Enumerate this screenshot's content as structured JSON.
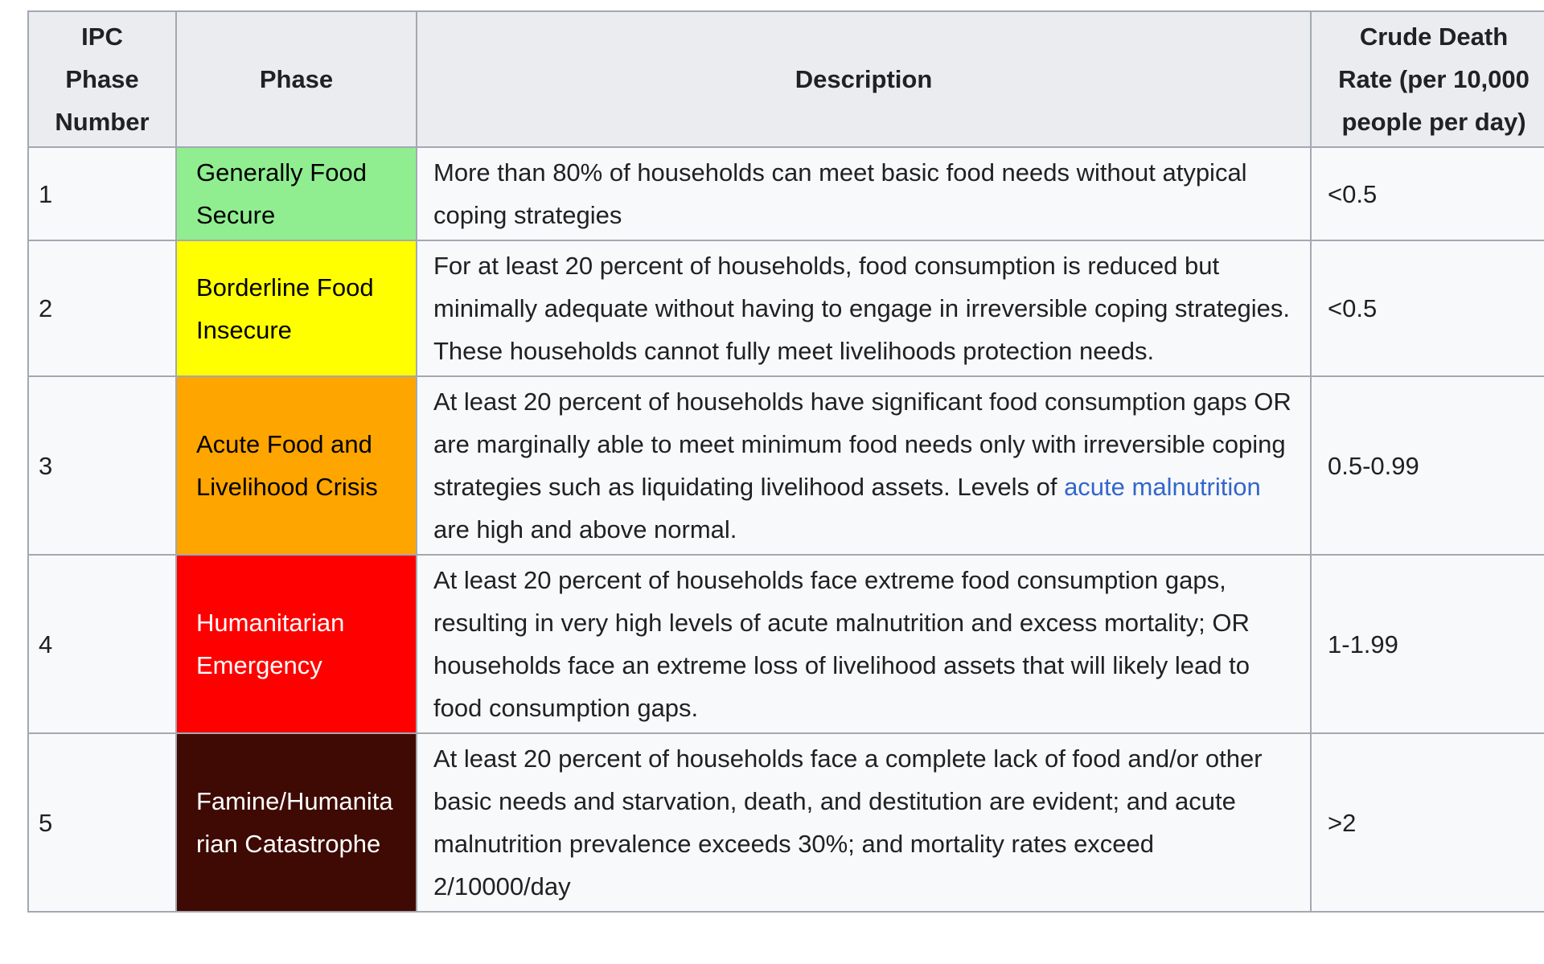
{
  "colors": {
    "page_bg": "#ffffff",
    "header_bg": "#eaecf0",
    "cell_bg": "#f8f9fa",
    "border": "#a2a9b1",
    "text": "#202122",
    "link": "#3366cc"
  },
  "table": {
    "headers": [
      {
        "label": "IPC Phase\nNumber"
      },
      {
        "label": "Phase"
      },
      {
        "label": "Description"
      },
      {
        "label": "Crude Death\nRate (per 10,000\npeople per day)"
      }
    ],
    "rows": [
      {
        "ipc_phase_number": "1",
        "phase": {
          "label": "Generally Food Secure",
          "bg": "#90ee90",
          "text_color": "#000000"
        },
        "description": [
          {
            "text": "More than 80% of households can meet basic food needs without atypical coping strategies"
          }
        ],
        "crude_death_rate": "<0.5"
      },
      {
        "ipc_phase_number": "2",
        "phase": {
          "label": "Borderline Food Insecure",
          "bg": "#ffff00",
          "text_color": "#000000"
        },
        "description": [
          {
            "text": "For at least 20 percent of households, food consumption is reduced but minimally adequate without having to engage in irreversible coping strategies. These households cannot fully meet livelihoods protection needs."
          }
        ],
        "crude_death_rate": "<0.5"
      },
      {
        "ipc_phase_number": "3",
        "phase": {
          "label": "Acute Food and Livelihood Crisis",
          "bg": "#ffa500",
          "text_color": "#000000"
        },
        "description": [
          {
            "text": "At least 20 percent of households have significant food consumption gaps OR are marginally able to meet minimum food needs only with irreversible coping strategies such as liquidating livelihood assets. Levels of "
          },
          {
            "text": "acute malnutrition",
            "link": true
          },
          {
            "text": " are high and above normal."
          }
        ],
        "crude_death_rate": "0.5-0.99"
      },
      {
        "ipc_phase_number": "4",
        "phase": {
          "label": "Humanitarian Emergency",
          "bg": "#ff0000",
          "text_color": "#ffffff"
        },
        "description": [
          {
            "text": "At least 20 percent of households face extreme food consumption gaps, resulting in very high levels of acute malnutrition and excess mortality; OR households face an extreme loss of livelihood assets that will likely lead to food consumption gaps."
          }
        ],
        "crude_death_rate": "1-1.99"
      },
      {
        "ipc_phase_number": "5",
        "phase": {
          "label": "Famine/Humanitarian Catastrophe",
          "bg": "#3e0a03",
          "text_color": "#ffffff"
        },
        "description": [
          {
            "text": "At least 20 percent of households face a complete lack of food and/or other basic needs and starvation, death, and destitution are evident; and acute malnutrition prevalence exceeds 30%; and mortality rates exceed 2/10000/day"
          }
        ],
        "crude_death_rate": ">2"
      }
    ]
  }
}
